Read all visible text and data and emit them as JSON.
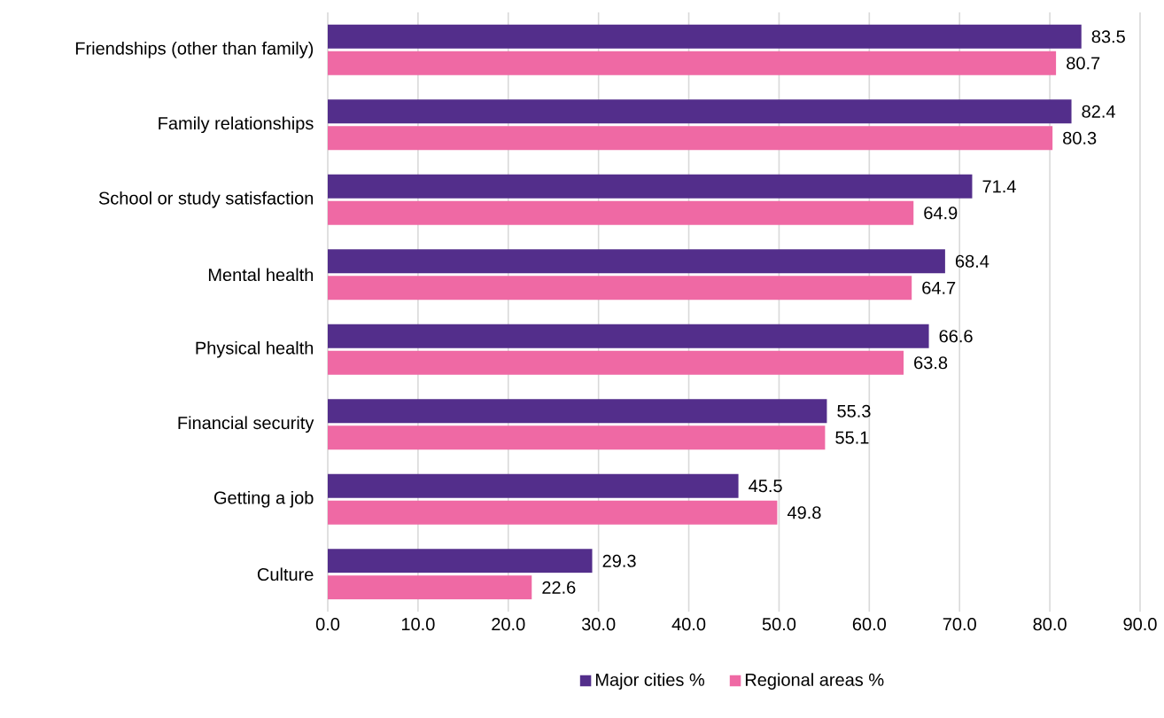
{
  "chart_data": {
    "type": "bar",
    "orientation": "horizontal",
    "categories": [
      "Friendships (other than family)",
      "Family relationships",
      "School or study satisfaction",
      "Mental health",
      "Physical health",
      "Financial security",
      "Getting a job",
      "Culture"
    ],
    "series": [
      {
        "name": "Major cities %",
        "color": "#532e8b",
        "values": [
          83.5,
          82.4,
          71.4,
          68.4,
          66.6,
          55.3,
          45.5,
          29.3
        ]
      },
      {
        "name": "Regional areas %",
        "color": "#ef69a4",
        "values": [
          80.7,
          80.3,
          64.9,
          64.7,
          63.8,
          55.1,
          49.8,
          22.6
        ]
      }
    ],
    "xlim": [
      0,
      90
    ],
    "xticks": [
      {
        "value": 0,
        "label": "0.0"
      },
      {
        "value": 10,
        "label": "10.0"
      },
      {
        "value": 20,
        "label": "20.0"
      },
      {
        "value": 30,
        "label": "30.0"
      },
      {
        "value": 40,
        "label": "40.0"
      },
      {
        "value": 50,
        "label": "50.0"
      },
      {
        "value": 60,
        "label": "60.0"
      },
      {
        "value": 70,
        "label": "70.0"
      },
      {
        "value": 80,
        "label": "80.0"
      },
      {
        "value": 90,
        "label": "90.0"
      }
    ],
    "data_labels": true,
    "grid": "x",
    "legend": "bottom"
  }
}
